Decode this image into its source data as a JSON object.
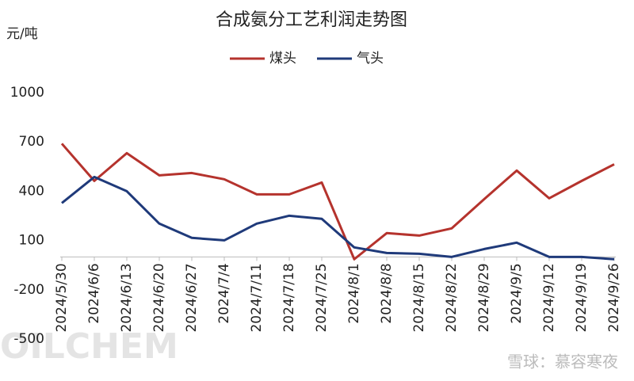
{
  "chart_data": {
    "type": "line",
    "title": "合成氨分工艺利润走势图",
    "y_unit": "元/吨",
    "categories": [
      "2024/5/30",
      "2024/6/6",
      "2024/6/13",
      "2024/6/20",
      "2024/6/27",
      "2024/7/4",
      "2024/7/11",
      "2024/7/18",
      "2024/7/25",
      "2024/8/1",
      "2024/8/8",
      "2024/8/15",
      "2024/8/22",
      "2024/8/29",
      "2024/9/5",
      "2024/9/12",
      "2024/9/19",
      "2024/9/26"
    ],
    "series": [
      {
        "name": "煤头",
        "color": "#b5332d",
        "values": [
          690,
          463,
          632,
          497,
          511,
          473,
          381,
          381,
          453,
          -14,
          145,
          130,
          174,
          352,
          526,
          357,
          463,
          564
        ]
      },
      {
        "name": "气头",
        "color": "#1f3a7a",
        "values": [
          328,
          487,
          400,
          203,
          116,
          101,
          203,
          251,
          232,
          58,
          24,
          19,
          0,
          48,
          87,
          0,
          0,
          -14
        ]
      }
    ],
    "ylim": [
      -500,
      1200
    ],
    "yticks": [
      -500,
      -200,
      100,
      400,
      700,
      1000
    ],
    "watermarks": [
      "OILCHEM",
      "雪球：慕容寒夜"
    ]
  }
}
